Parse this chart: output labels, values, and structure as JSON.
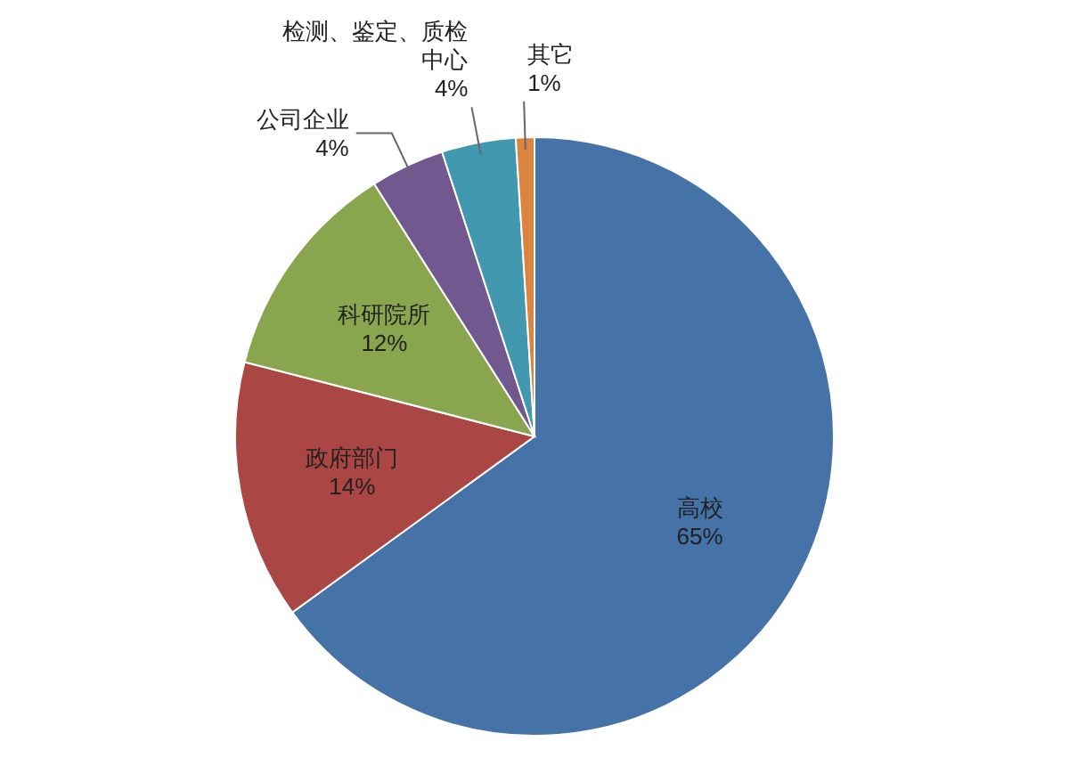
{
  "chart_data": {
    "type": "pie",
    "categories": [
      "高校",
      "政府部门",
      "科研院所",
      "公司企业",
      "检测、鉴定、质检中心",
      "其它"
    ],
    "values": [
      65,
      14,
      12,
      4,
      4,
      1
    ],
    "colors": [
      "#4572a7",
      "#aa4643",
      "#89a54e",
      "#71588f",
      "#4198af",
      "#db843d"
    ],
    "value_labels": [
      "65%",
      "14%",
      "12%",
      "4%",
      "4%",
      "1%"
    ],
    "legend": false
  }
}
